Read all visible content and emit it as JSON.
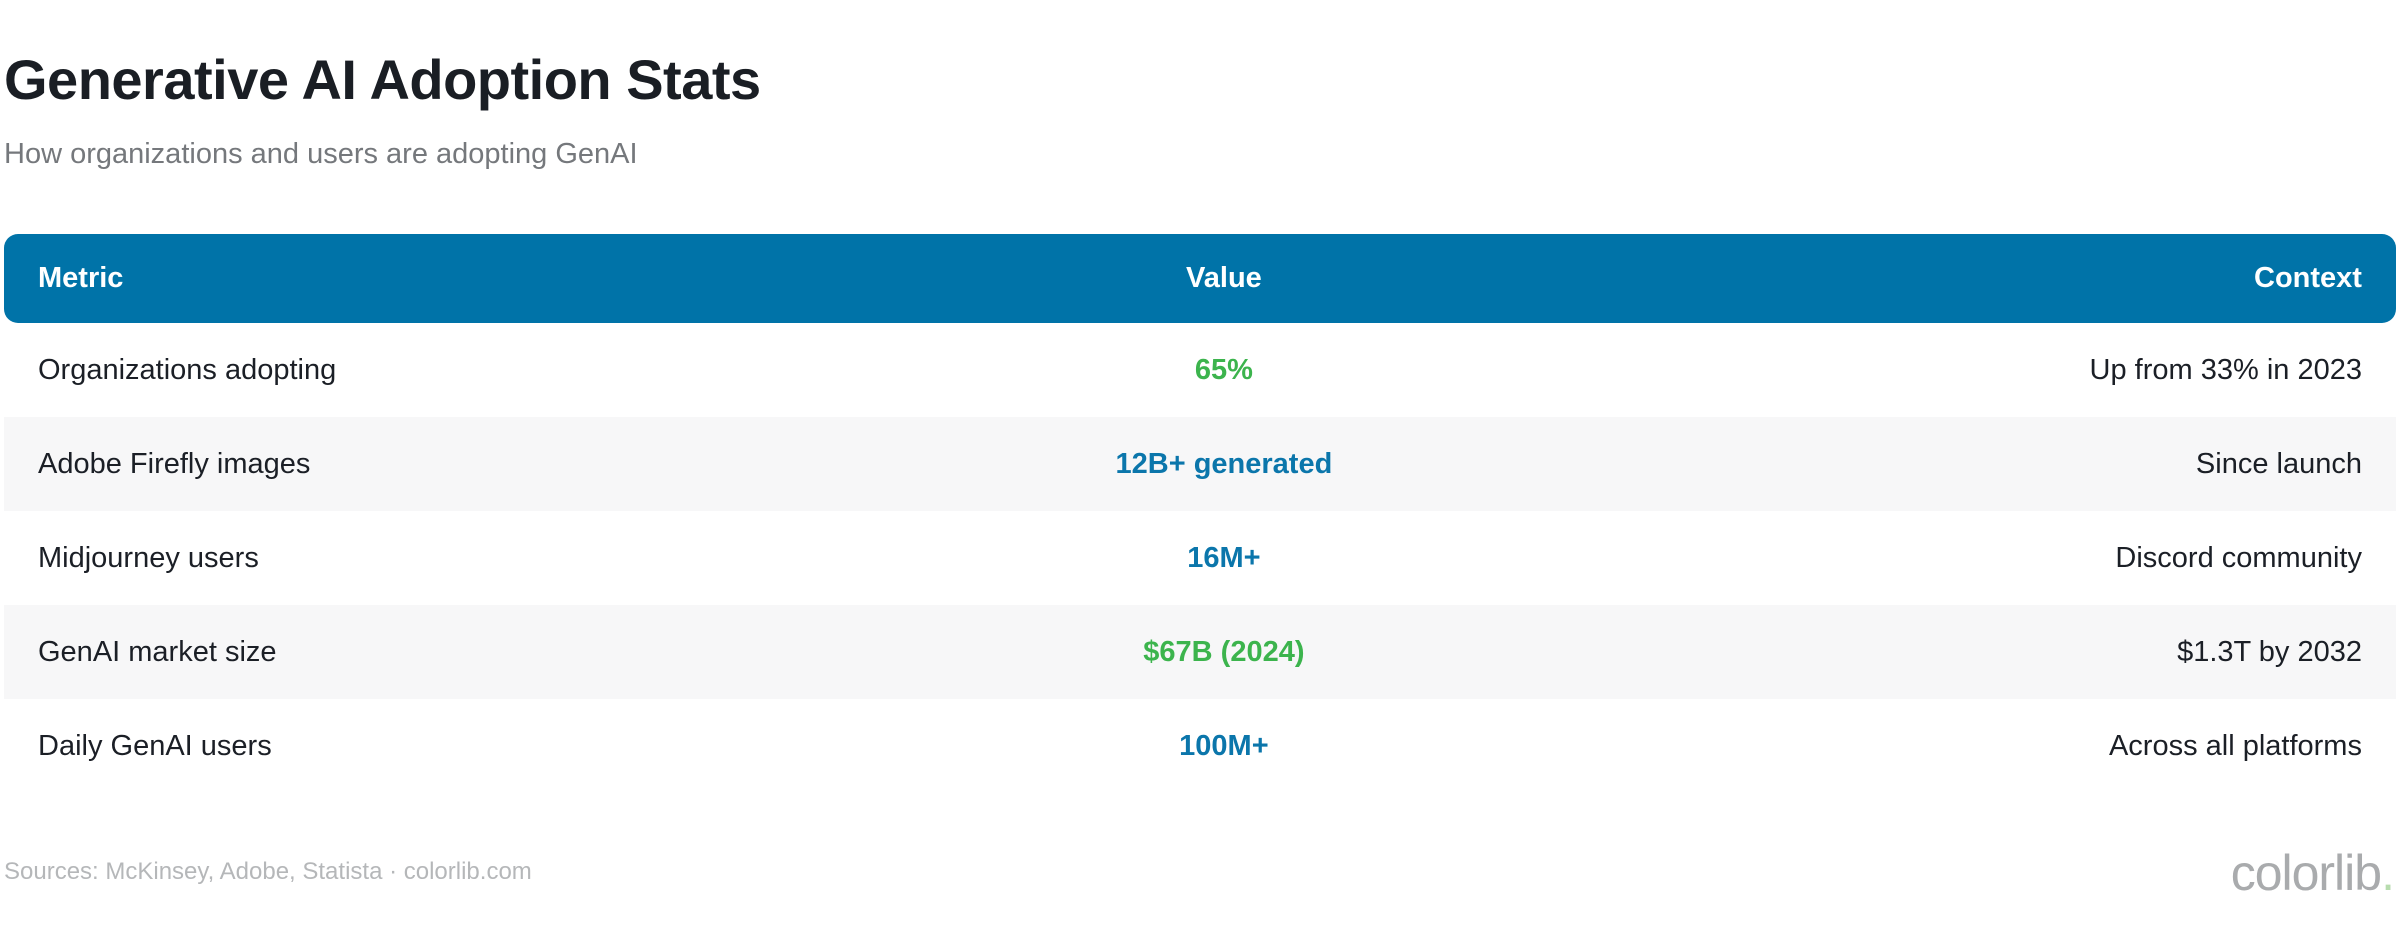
{
  "page": {
    "title": "Generative AI Adoption Stats",
    "subtitle": "How organizations and users are adopting GenAI",
    "footer_sources": "Sources: McKinsey, Adobe, Statista · colorlib.com",
    "brand_name": "colorlib",
    "brand_dot": "."
  },
  "colors": {
    "header_bg": "#0073a8",
    "value_green": "#3cb44d",
    "value_blue": "#0b76ab",
    "alt_row_bg": "#f7f7f8",
    "dark_text": "#1b1f26",
    "subtitle_gray": "#75787c",
    "footer_gray": "#b5b7b9",
    "brand_gray": "#a9abad",
    "brand_dot_green": "#b7dcae"
  },
  "table": {
    "columns": [
      "Metric",
      "Value",
      "Context"
    ],
    "rows": [
      {
        "metric": "Organizations adopting",
        "value": "65%",
        "value_color": "green",
        "context": "Up from 33% in 2023"
      },
      {
        "metric": "Adobe Firefly images",
        "value": "12B+ generated",
        "value_color": "blue",
        "context": "Since launch"
      },
      {
        "metric": "Midjourney users",
        "value": "16M+",
        "value_color": "blue",
        "context": "Discord community"
      },
      {
        "metric": "GenAI market size",
        "value": "$67B (2024)",
        "value_color": "green",
        "context": "$1.3T by 2032"
      },
      {
        "metric": "Daily GenAI users",
        "value": "100M+",
        "value_color": "blue",
        "context": "Across all platforms"
      }
    ]
  },
  "chart_data": {
    "type": "table",
    "title": "Generative AI Adoption Stats",
    "subtitle": "How organizations and users are adopting GenAI",
    "columns": [
      "Metric",
      "Value",
      "Context"
    ],
    "rows": [
      [
        "Organizations adopting",
        "65%",
        "Up from 33% in 2023"
      ],
      [
        "Adobe Firefly images",
        "12B+ generated",
        "Since launch"
      ],
      [
        "Midjourney users",
        "16M+",
        "Discord community"
      ],
      [
        "GenAI market size",
        "$67B (2024)",
        "$1.3T by 2032"
      ],
      [
        "Daily GenAI users",
        "100M+",
        "Across all platforms"
      ]
    ],
    "value_highlight_colors": [
      "#3cb44d",
      "#0b76ab",
      "#0b76ab",
      "#3cb44d",
      "#0b76ab"
    ],
    "source_note": "Sources: McKinsey, Adobe, Statista · colorlib.com"
  }
}
